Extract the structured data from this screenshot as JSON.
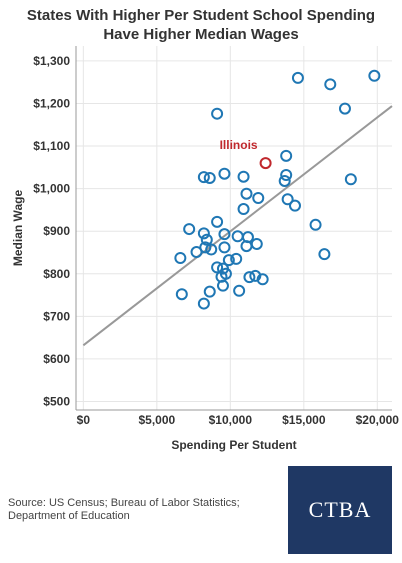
{
  "title_lines": [
    "States With Higher Per Student School Spending",
    "Have Higher Median Wages"
  ],
  "source_text": "Source: US Census; Bureau of Labor Statistics; Department of Education",
  "logo_text": "CTBA",
  "colors": {
    "point": "#1f77b4",
    "highlight": "#c0282d",
    "trend": "#999999",
    "logo_bg": "#1f3864"
  },
  "chart_data": {
    "type": "scatter",
    "title": "States With Higher Per Student School Spending Have Higher Median Wages",
    "xlabel": "Spending Per Student",
    "ylabel": "Median Wage",
    "xlim": [
      -500,
      21000
    ],
    "ylim": [
      480,
      1335
    ],
    "x_ticks": [
      0,
      5000,
      10000,
      15000,
      20000
    ],
    "x_tick_labels": [
      "$0",
      "$5,000",
      "$10,000",
      "$15,000",
      "$20,000"
    ],
    "y_ticks": [
      500,
      600,
      700,
      800,
      900,
      1000,
      1100,
      1200,
      1300
    ],
    "y_tick_labels": [
      "$500",
      "$600",
      "$700",
      "$800",
      "$900",
      "$1,000",
      "$1,100",
      "$1,200",
      "$1,300"
    ],
    "trendline": {
      "x": [
        0,
        21000
      ],
      "y": [
        632,
        1194
      ]
    },
    "highlight": {
      "label": "Illinois",
      "x": 12400,
      "y": 1060
    },
    "points": [
      {
        "x": 14600,
        "y": 1260
      },
      {
        "x": 16800,
        "y": 1245
      },
      {
        "x": 19800,
        "y": 1265
      },
      {
        "x": 17800,
        "y": 1188
      },
      {
        "x": 9100,
        "y": 1176
      },
      {
        "x": 13800,
        "y": 1077
      },
      {
        "x": 13800,
        "y": 1032
      },
      {
        "x": 13700,
        "y": 1018
      },
      {
        "x": 18200,
        "y": 1022
      },
      {
        "x": 9600,
        "y": 1035
      },
      {
        "x": 8200,
        "y": 1027
      },
      {
        "x": 8600,
        "y": 1025
      },
      {
        "x": 10900,
        "y": 1028
      },
      {
        "x": 11100,
        "y": 988
      },
      {
        "x": 11900,
        "y": 978
      },
      {
        "x": 13900,
        "y": 975
      },
      {
        "x": 14400,
        "y": 960
      },
      {
        "x": 10900,
        "y": 952
      },
      {
        "x": 9100,
        "y": 922
      },
      {
        "x": 15800,
        "y": 915
      },
      {
        "x": 7200,
        "y": 905
      },
      {
        "x": 8200,
        "y": 895
      },
      {
        "x": 8400,
        "y": 880
      },
      {
        "x": 9600,
        "y": 893
      },
      {
        "x": 10500,
        "y": 888
      },
      {
        "x": 11200,
        "y": 886
      },
      {
        "x": 11800,
        "y": 870
      },
      {
        "x": 11100,
        "y": 865
      },
      {
        "x": 9600,
        "y": 862
      },
      {
        "x": 8700,
        "y": 857
      },
      {
        "x": 8300,
        "y": 862
      },
      {
        "x": 7700,
        "y": 851
      },
      {
        "x": 6600,
        "y": 837
      },
      {
        "x": 16400,
        "y": 846
      },
      {
        "x": 10400,
        "y": 835
      },
      {
        "x": 9900,
        "y": 832
      },
      {
        "x": 9500,
        "y": 812
      },
      {
        "x": 9100,
        "y": 815
      },
      {
        "x": 9700,
        "y": 800
      },
      {
        "x": 9400,
        "y": 793
      },
      {
        "x": 11300,
        "y": 792
      },
      {
        "x": 11700,
        "y": 795
      },
      {
        "x": 12200,
        "y": 787
      },
      {
        "x": 9500,
        "y": 772
      },
      {
        "x": 8600,
        "y": 758
      },
      {
        "x": 10600,
        "y": 760
      },
      {
        "x": 6700,
        "y": 752
      },
      {
        "x": 8200,
        "y": 730
      }
    ]
  }
}
